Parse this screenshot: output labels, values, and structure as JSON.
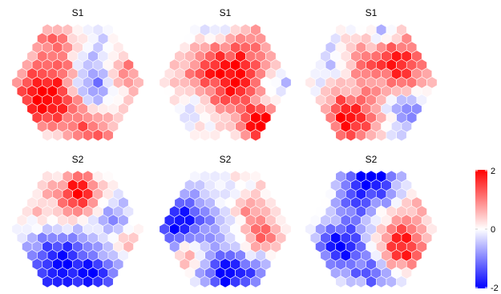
{
  "chart_data": {
    "type": "heatmap",
    "description_of_values": "hexagonal lattice maps, diverging blue-white-red color scale",
    "color_scale": {
      "min": -2,
      "max": 2,
      "ticks": [
        2,
        0,
        -2
      ],
      "tick_labels": [
        "2",
        "0",
        "-2"
      ],
      "colors": {
        "low": "#0000ff",
        "mid": "#ffffff",
        "high": "#ff0000"
      },
      "legend_position": "right"
    },
    "grid_radius": 6,
    "panels": [
      {
        "title": "S1",
        "blobs": [
          {
            "q": -4,
            "r": 2,
            "v": 2.1,
            "s": 3.0
          },
          {
            "q": 1,
            "r": 1,
            "v": -1.6,
            "s": 1.8
          },
          {
            "q": -1,
            "r": 5,
            "v": 1.1,
            "s": 2.2
          },
          {
            "q": 3,
            "r": -3,
            "v": -0.6,
            "s": 1.6
          },
          {
            "q": -5,
            "r": 6,
            "v": -0.9,
            "s": 1.4
          },
          {
            "q": 5,
            "r": -1,
            "v": 1.1,
            "s": 1.6
          },
          {
            "q": 0,
            "r": -5,
            "v": 0.9,
            "s": 1.8
          }
        ]
      },
      {
        "title": "S1",
        "blobs": [
          {
            "q": 1,
            "r": -1,
            "v": 2.0,
            "s": 3.3
          },
          {
            "q": 1,
            "r": 5,
            "v": 2.0,
            "s": 1.4
          },
          {
            "q": 2,
            "r": -6,
            "v": -0.8,
            "s": 1.8
          },
          {
            "q": -4,
            "r": 3,
            "v": -0.6,
            "s": 1.6
          },
          {
            "q": 5,
            "r": 0,
            "v": -0.9,
            "s": 1.6
          }
        ]
      },
      {
        "title": "S1",
        "blobs": [
          {
            "q": -4,
            "r": 4,
            "v": 2.0,
            "s": 2.0
          },
          {
            "q": 4,
            "r": -2,
            "v": 1.7,
            "s": 2.3
          },
          {
            "q": 0,
            "r": -3,
            "v": 0.9,
            "s": 2.0
          },
          {
            "q": 2,
            "r": 3,
            "v": -1.0,
            "s": 1.6
          },
          {
            "q": -2,
            "r": -3,
            "v": -0.8,
            "s": 1.5
          },
          {
            "q": 4,
            "r": -6,
            "v": -0.9,
            "s": 1.2
          }
        ]
      },
      {
        "title": "S2",
        "blobs": [
          {
            "q": -4,
            "r": 4,
            "v": -1.9,
            "s": 2.4
          },
          {
            "q": 2,
            "r": -4,
            "v": 2.0,
            "s": 1.6
          },
          {
            "q": 4,
            "r": -1,
            "v": -1.0,
            "s": 1.6
          },
          {
            "q": -1,
            "r": 6,
            "v": -1.6,
            "s": 2.0
          },
          {
            "q": 4,
            "r": 1,
            "v": 0.8,
            "s": 1.3
          },
          {
            "q": -3,
            "r": -2,
            "v": 0.5,
            "s": 1.4
          }
        ]
      },
      {
        "title": "S2",
        "blobs": [
          {
            "q": -4,
            "r": -1,
            "v": -2.0,
            "s": 2.4
          },
          {
            "q": -2,
            "r": 5,
            "v": -1.9,
            "s": 2.2
          },
          {
            "q": 3,
            "r": 1,
            "v": 1.4,
            "s": 1.6
          },
          {
            "q": -5,
            "r": 3,
            "v": 1.1,
            "s": 1.3
          },
          {
            "q": 4,
            "r": -3,
            "v": 0.7,
            "s": 1.2
          },
          {
            "q": 2,
            "r": 4,
            "v": -0.6,
            "s": 1.3
          }
        ]
      },
      {
        "title": "S2",
        "blobs": [
          {
            "q": 3,
            "r": -6,
            "v": -2.0,
            "s": 2.0
          },
          {
            "q": -4,
            "r": 2,
            "v": -2.0,
            "s": 1.9
          },
          {
            "q": 2,
            "r": 2,
            "v": 1.9,
            "s": 1.8
          },
          {
            "q": -2,
            "r": 5,
            "v": -1.3,
            "s": 1.5
          },
          {
            "q": 0,
            "r": -3,
            "v": -0.8,
            "s": 1.6
          },
          {
            "q": 5,
            "r": -2,
            "v": 0.5,
            "s": 1.4
          }
        ]
      }
    ]
  }
}
